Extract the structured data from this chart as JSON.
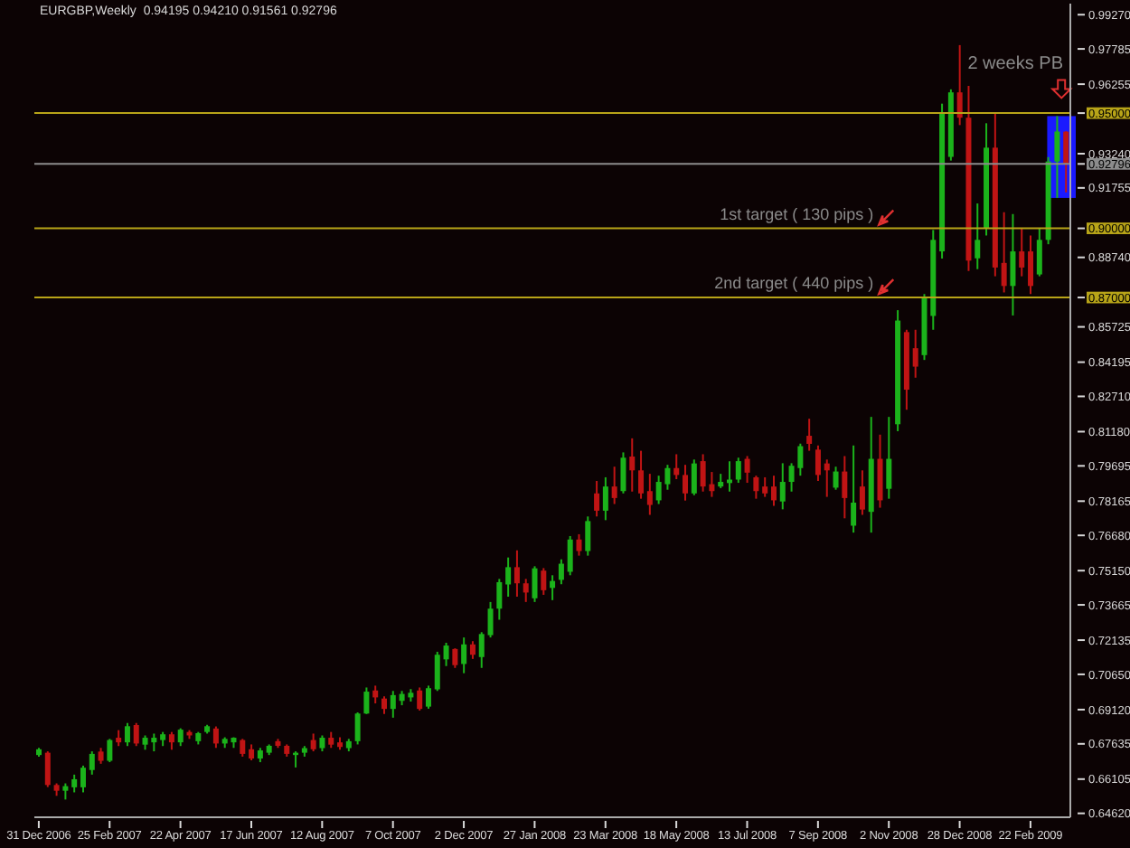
{
  "chart_data": {
    "type": "candlestick",
    "title": "EURGBP,Weekly  0.94195 0.94210 0.91561 0.92796",
    "categories": [
      "31 Dec 2006",
      null,
      null,
      null,
      null,
      null,
      null,
      null,
      "25 Feb 2007",
      null,
      null,
      null,
      null,
      null,
      null,
      null,
      "22 Apr 2007",
      null,
      null,
      null,
      null,
      null,
      null,
      null,
      "17 Jun 2007",
      null,
      null,
      null,
      null,
      null,
      null,
      null,
      "12 Aug 2007",
      null,
      null,
      null,
      null,
      null,
      null,
      null,
      "7 Oct 2007",
      null,
      null,
      null,
      null,
      null,
      null,
      null,
      "2 Dec 2007",
      null,
      null,
      null,
      null,
      null,
      null,
      null,
      "27 Jan 2008",
      null,
      null,
      null,
      null,
      null,
      null,
      null,
      "23 Mar 2008",
      null,
      null,
      null,
      null,
      null,
      null,
      null,
      "18 May 2008",
      null,
      null,
      null,
      null,
      null,
      null,
      null,
      "13 Jul 2008",
      null,
      null,
      null,
      null,
      null,
      null,
      null,
      "7 Sep 2008",
      null,
      null,
      null,
      null,
      null,
      null,
      null,
      "2 Nov 2008",
      null,
      null,
      null,
      null,
      null,
      null,
      null,
      "28 Dec 2008",
      null,
      null,
      null,
      null,
      null,
      null,
      null,
      "22 Feb 2009",
      null,
      null,
      null,
      null
    ],
    "ohlc": [
      [
        0.6715,
        0.6746,
        0.6708,
        0.674
      ],
      [
        0.6725,
        0.6731,
        0.6576,
        0.6585
      ],
      [
        0.6585,
        0.6592,
        0.6538,
        0.656
      ],
      [
        0.656,
        0.6592,
        0.6522,
        0.658
      ],
      [
        0.6575,
        0.663,
        0.6553,
        0.661
      ],
      [
        0.6575,
        0.6669,
        0.6553,
        0.666
      ],
      [
        0.665,
        0.6731,
        0.663,
        0.672
      ],
      [
        0.673,
        0.6746,
        0.6677,
        0.669
      ],
      [
        0.669,
        0.6785,
        0.6684,
        0.678
      ],
      [
        0.679,
        0.6823,
        0.6754,
        0.677
      ],
      [
        0.677,
        0.6854,
        0.6754,
        0.684
      ],
      [
        0.6845,
        0.6854,
        0.6754,
        0.6765
      ],
      [
        0.676,
        0.68,
        0.6738,
        0.679
      ],
      [
        0.677,
        0.6808,
        0.6731,
        0.679
      ],
      [
        0.678,
        0.6815,
        0.6754,
        0.6805
      ],
      [
        0.6805,
        0.6815,
        0.6738,
        0.677
      ],
      [
        0.677,
        0.6831,
        0.6754,
        0.6825
      ],
      [
        0.6815,
        0.6823,
        0.6785,
        0.68
      ],
      [
        0.6775,
        0.6815,
        0.6761,
        0.681
      ],
      [
        0.6815,
        0.6846,
        0.6808,
        0.684
      ],
      [
        0.683,
        0.6839,
        0.6746,
        0.6765
      ],
      [
        0.6765,
        0.6792,
        0.6746,
        0.6785
      ],
      [
        0.677,
        0.6792,
        0.6746,
        0.679
      ],
      [
        0.678,
        0.6785,
        0.6708,
        0.672
      ],
      [
        0.674,
        0.6761,
        0.6692,
        0.67
      ],
      [
        0.67,
        0.6746,
        0.6684,
        0.6735
      ],
      [
        0.6725,
        0.6761,
        0.6715,
        0.6755
      ],
      [
        0.6775,
        0.6785,
        0.6746,
        0.6755
      ],
      [
        0.6755,
        0.6761,
        0.6708,
        0.672
      ],
      [
        0.6715,
        0.6731,
        0.6661,
        0.6725
      ],
      [
        0.6725,
        0.6754,
        0.6708,
        0.6745
      ],
      [
        0.678,
        0.6808,
        0.6731,
        0.674
      ],
      [
        0.6745,
        0.68,
        0.6731,
        0.679
      ],
      [
        0.679,
        0.6815,
        0.6746,
        0.676
      ],
      [
        0.677,
        0.6792,
        0.6738,
        0.675
      ],
      [
        0.6745,
        0.6785,
        0.6731,
        0.6775
      ],
      [
        0.6775,
        0.69,
        0.6761,
        0.6895
      ],
      [
        0.6895,
        0.7008,
        0.6893,
        0.699
      ],
      [
        0.6995,
        0.7016,
        0.6939,
        0.6965
      ],
      [
        0.696,
        0.697,
        0.6893,
        0.6915
      ],
      [
        0.6915,
        0.6993,
        0.6877,
        0.6975
      ],
      [
        0.695,
        0.6993,
        0.6931,
        0.698
      ],
      [
        0.6965,
        0.7001,
        0.6947,
        0.6985
      ],
      [
        0.6995,
        0.7008,
        0.6908,
        0.6915
      ],
      [
        0.6925,
        0.7016,
        0.6916,
        0.7005
      ],
      [
        0.7,
        0.7163,
        0.6993,
        0.715
      ],
      [
        0.713,
        0.7202,
        0.7101,
        0.719
      ],
      [
        0.7175,
        0.7178,
        0.7093,
        0.7105
      ],
      [
        0.711,
        0.7225,
        0.707,
        0.7195
      ],
      [
        0.7195,
        0.7209,
        0.7132,
        0.715
      ],
      [
        0.714,
        0.7248,
        0.7093,
        0.724
      ],
      [
        0.7235,
        0.7379,
        0.7225,
        0.735
      ],
      [
        0.735,
        0.7479,
        0.7302,
        0.7465
      ],
      [
        0.7455,
        0.7572,
        0.7402,
        0.753
      ],
      [
        0.753,
        0.7603,
        0.7402,
        0.746
      ],
      [
        0.746,
        0.7479,
        0.7379,
        0.742
      ],
      [
        0.7395,
        0.7534,
        0.7379,
        0.7525
      ],
      [
        0.7515,
        0.7526,
        0.741,
        0.743
      ],
      [
        0.744,
        0.7495,
        0.7387,
        0.747
      ],
      [
        0.7475,
        0.7564,
        0.7456,
        0.7545
      ],
      [
        0.751,
        0.7665,
        0.7495,
        0.765
      ],
      [
        0.765,
        0.7673,
        0.758,
        0.76
      ],
      [
        0.76,
        0.775,
        0.758,
        0.773
      ],
      [
        0.785,
        0.7904,
        0.775,
        0.7775
      ],
      [
        0.7775,
        0.792,
        0.7734,
        0.788
      ],
      [
        0.788,
        0.7966,
        0.7804,
        0.783
      ],
      [
        0.786,
        0.8028,
        0.785,
        0.8005
      ],
      [
        0.801,
        0.8089,
        0.7858,
        0.795
      ],
      [
        0.795,
        0.8035,
        0.7827,
        0.785
      ],
      [
        0.786,
        0.7935,
        0.7757,
        0.78
      ],
      [
        0.782,
        0.7927,
        0.7804,
        0.79
      ],
      [
        0.789,
        0.7974,
        0.7866,
        0.796
      ],
      [
        0.796,
        0.802,
        0.7912,
        0.793
      ],
      [
        0.793,
        0.7974,
        0.7819,
        0.785
      ],
      [
        0.785,
        0.7997,
        0.7842,
        0.798
      ],
      [
        0.799,
        0.802,
        0.7858,
        0.788
      ],
      [
        0.789,
        0.7943,
        0.7835,
        0.786
      ],
      [
        0.788,
        0.7935,
        0.7873,
        0.79
      ],
      [
        0.7895,
        0.7989,
        0.7858,
        0.791
      ],
      [
        0.791,
        0.8005,
        0.7896,
        0.799
      ],
      [
        0.8,
        0.8012,
        0.7896,
        0.794
      ],
      [
        0.792,
        0.7927,
        0.7827,
        0.786
      ],
      [
        0.788,
        0.792,
        0.7835,
        0.785
      ],
      [
        0.788,
        0.7927,
        0.7796,
        0.782
      ],
      [
        0.7815,
        0.7981,
        0.7781,
        0.79
      ],
      [
        0.79,
        0.7981,
        0.7858,
        0.797
      ],
      [
        0.796,
        0.8066,
        0.7927,
        0.8055
      ],
      [
        0.81,
        0.8174,
        0.8035,
        0.8065
      ],
      [
        0.804,
        0.8058,
        0.7904,
        0.793
      ],
      [
        0.798,
        0.7997,
        0.7835,
        0.795
      ],
      [
        0.7875,
        0.7966,
        0.7866,
        0.7945
      ],
      [
        0.7945,
        0.8012,
        0.7742,
        0.783
      ],
      [
        0.771,
        0.8058,
        0.768,
        0.781
      ],
      [
        0.788,
        0.795,
        0.7757,
        0.778
      ],
      [
        0.777,
        0.8182,
        0.768,
        0.8
      ],
      [
        0.8,
        0.8105,
        0.7788,
        0.782
      ],
      [
        0.787,
        0.8182,
        0.7827,
        0.8
      ],
      [
        0.815,
        0.8645,
        0.812,
        0.86
      ],
      [
        0.855,
        0.856,
        0.8213,
        0.83
      ],
      [
        0.848,
        0.856,
        0.8352,
        0.84
      ],
      [
        0.845,
        0.8715,
        0.8429,
        0.87
      ],
      [
        0.862,
        0.8993,
        0.856,
        0.895
      ],
      [
        0.89,
        0.9541,
        0.8869,
        0.95
      ],
      [
        0.931,
        0.9603,
        0.9294,
        0.959
      ],
      [
        0.959,
        0.9795,
        0.9448,
        0.948
      ],
      [
        0.948,
        0.9618,
        0.8815,
        0.886
      ],
      [
        0.887,
        0.9108,
        0.8823,
        0.895
      ],
      [
        0.9,
        0.9456,
        0.8969,
        0.935
      ],
      [
        0.935,
        0.9502,
        0.8792,
        0.883
      ],
      [
        0.885,
        0.907,
        0.8722,
        0.875
      ],
      [
        0.875,
        0.9062,
        0.8622,
        0.89
      ],
      [
        0.89,
        0.9,
        0.8792,
        0.883
      ],
      [
        0.89,
        0.8969,
        0.8715,
        0.875
      ],
      [
        0.88,
        0.9,
        0.8792,
        0.895
      ],
      [
        0.895,
        0.9309,
        0.8931,
        0.929
      ],
      [
        0.929,
        0.9487,
        0.9132,
        0.942
      ],
      [
        0.94195,
        0.9421,
        0.91561,
        0.92796
      ]
    ],
    "colors": [
      "#1bb31b",
      "#c01414",
      "#c01414",
      "#1bb31b",
      "#1bb31b",
      "#1bb31b",
      "#1bb31b",
      "#c01414",
      "#1bb31b",
      "#c01414",
      "#1bb31b",
      "#c01414",
      "#1bb31b",
      "#1bb31b",
      "#1bb31b",
      "#c01414",
      "#1bb31b",
      "#c01414",
      "#1bb31b",
      "#1bb31b",
      "#c01414",
      "#1bb31b",
      "#1bb31b",
      "#c01414",
      "#c01414",
      "#1bb31b",
      "#1bb31b",
      "#c01414",
      "#c01414",
      "#1bb31b",
      "#1bb31b",
      "#c01414",
      "#1bb31b",
      "#c01414",
      "#c01414",
      "#1bb31b",
      "#1bb31b",
      "#1bb31b",
      "#c01414",
      "#c01414",
      "#1bb31b",
      "#1bb31b",
      "#1bb31b",
      "#c01414",
      "#1bb31b",
      "#1bb31b",
      "#1bb31b",
      "#c01414",
      "#1bb31b",
      "#c01414",
      "#1bb31b",
      "#1bb31b",
      "#1bb31b",
      "#1bb31b",
      "#c01414",
      "#c01414",
      "#1bb31b",
      "#c01414",
      "#1bb31b",
      "#1bb31b",
      "#1bb31b",
      "#c01414",
      "#1bb31b",
      "#c01414",
      "#1bb31b",
      "#c01414",
      "#1bb31b",
      "#c01414",
      "#c01414",
      "#c01414",
      "#1bb31b",
      "#1bb31b",
      "#c01414",
      "#c01414",
      "#1bb31b",
      "#c01414",
      "#c01414",
      "#1bb31b",
      "#1bb31b",
      "#1bb31b",
      "#c01414",
      "#c01414",
      "#c01414",
      "#c01414",
      "#1bb31b",
      "#1bb31b",
      "#1bb31b",
      "#c01414",
      "#c01414",
      "#c01414",
      "#1bb31b",
      "#c01414",
      "#1bb31b",
      "#c01414",
      "#1bb31b",
      "#c01414",
      "#1bb31b",
      "#1bb31b",
      "#c01414",
      "#c01414",
      "#1bb31b",
      "#1bb31b",
      "#1bb31b",
      "#1bb31b",
      "#c01414",
      "#c01414",
      "#1bb31b",
      "#1bb31b",
      "#c01414",
      "#c01414",
      "#1bb31b",
      "#c01414",
      "#c01414",
      "#1bb31b",
      "#1bb31b",
      "#1bb31b",
      "#c01414"
    ],
    "ylim": [
      0.6445,
      0.9975
    ],
    "yticks": [
      {
        "value": 0.9927,
        "label": "0.99270"
      },
      {
        "value": 0.97785,
        "label": "0.97785"
      },
      {
        "value": 0.96255,
        "label": "0.96255"
      },
      {
        "value": 0.95,
        "label": "0.95000"
      },
      {
        "value": 0.9324,
        "label": "0.93240"
      },
      {
        "value": 0.92796,
        "label": "0.92796"
      },
      {
        "value": 0.91755,
        "label": "0.91755"
      },
      {
        "value": 0.9,
        "label": "0.90000"
      },
      {
        "value": 0.8874,
        "label": "0.88740"
      },
      {
        "value": 0.87,
        "label": "0.87000"
      },
      {
        "value": 0.85725,
        "label": "0.85725"
      },
      {
        "value": 0.84195,
        "label": "0.84195"
      },
      {
        "value": 0.8271,
        "label": "0.82710"
      },
      {
        "value": 0.8118,
        "label": "0.81180"
      },
      {
        "value": 0.79695,
        "label": "0.79695"
      },
      {
        "value": 0.78165,
        "label": "0.78165"
      },
      {
        "value": 0.7668,
        "label": "0.76680"
      },
      {
        "value": 0.7515,
        "label": "0.75150"
      },
      {
        "value": 0.73665,
        "label": "0.73665"
      },
      {
        "value": 0.72135,
        "label": "0.72135"
      },
      {
        "value": 0.7065,
        "label": "0.70650"
      },
      {
        "value": 0.6912,
        "label": "0.69120"
      },
      {
        "value": 0.67635,
        "label": "0.67635"
      },
      {
        "value": 0.66105,
        "label": "0.66105"
      },
      {
        "value": 0.6462,
        "label": "0.64620"
      }
    ],
    "ref_lines": [
      {
        "axis": "y",
        "value": 0.95,
        "color": "#b8a418"
      },
      {
        "axis": "y",
        "value": 0.92796,
        "color": "#8c8c8c"
      },
      {
        "axis": "y",
        "value": 0.9,
        "label": "1st target ( 130 pips )",
        "color": "#b8a418"
      },
      {
        "axis": "y",
        "value": 0.87,
        "label": "2nd target ( 440 pips )",
        "color": "#b8a418"
      }
    ],
    "annotations": [
      "2 weeks PB"
    ]
  }
}
